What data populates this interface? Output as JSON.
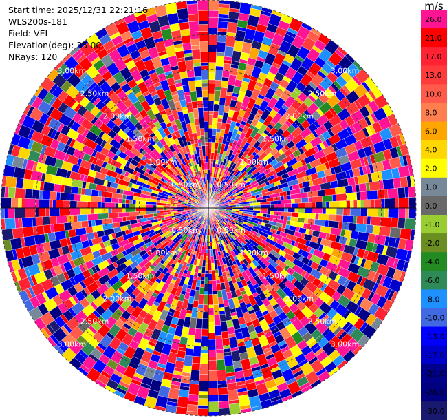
{
  "info": {
    "start_time": "Start time: 2025/12/31 22:21:16",
    "device": "WLS200s-181",
    "field": "Field: VEL",
    "elevation": "Elevation(deg): 35.00",
    "nrays": "NRays: 120"
  },
  "colorbar": {
    "unit": "m/s",
    "segments": [
      {
        "label": "26.0",
        "color": "#ff1493"
      },
      {
        "label": "21.0",
        "color": "#ff0000"
      },
      {
        "label": "17.0",
        "color": "#ff2233"
      },
      {
        "label": "13.0",
        "color": "#ff3b3b"
      },
      {
        "label": "10.0",
        "color": "#ff5a4a"
      },
      {
        "label": "8.0",
        "color": "#ff7f50"
      },
      {
        "label": "6.0",
        "color": "#ffa500"
      },
      {
        "label": "4.0",
        "color": "#ffd700"
      },
      {
        "label": "2.0",
        "color": "#ffff00"
      },
      {
        "label": "1.0",
        "color": "#778899"
      },
      {
        "label": "0.0",
        "color": "#696969"
      },
      {
        "label": "-1.0",
        "color": "#9acd32"
      },
      {
        "label": "-2.0",
        "color": "#6b8e23"
      },
      {
        "label": "-4.0",
        "color": "#228b22"
      },
      {
        "label": "-6.0",
        "color": "#2e8b57"
      },
      {
        "label": "-8.0",
        "color": "#1e90ff"
      },
      {
        "label": "-10.0",
        "color": "#4169e1"
      },
      {
        "label": "-13.0",
        "color": "#0000ff"
      },
      {
        "label": "-17.0",
        "color": "#0000cd"
      },
      {
        "label": "-21.0",
        "color": "#00008b"
      },
      {
        "label": "-26.0",
        "color": "#000080"
      },
      {
        "label": "-30.0",
        "color": "#191970"
      }
    ]
  },
  "chart_data": {
    "type": "heatmap",
    "projection": "polar-ppi",
    "field": "VEL",
    "nrays": 120,
    "max_range_km": 3.0,
    "range_rings_km": [
      0.5,
      1.0,
      1.5,
      2.0,
      2.5,
      3.0
    ],
    "ring_labels": [
      {
        "label": "0.50km",
        "range_km": 0.5
      },
      {
        "label": "1.00km",
        "range_km": 1.0
      },
      {
        "label": "1.50km",
        "range_km": 1.5
      },
      {
        "label": "2.00km",
        "range_km": 2.0
      },
      {
        "label": "2.50km",
        "range_km": 2.5
      },
      {
        "label": "3.00km",
        "range_km": 3.0
      }
    ],
    "value_range": [
      -30.0,
      30.0
    ],
    "pattern": "highly variable velocities, mostly strong positive (pink/red) and strong negative (blue/navy) values mixed with yellow near-zero-positive values"
  }
}
